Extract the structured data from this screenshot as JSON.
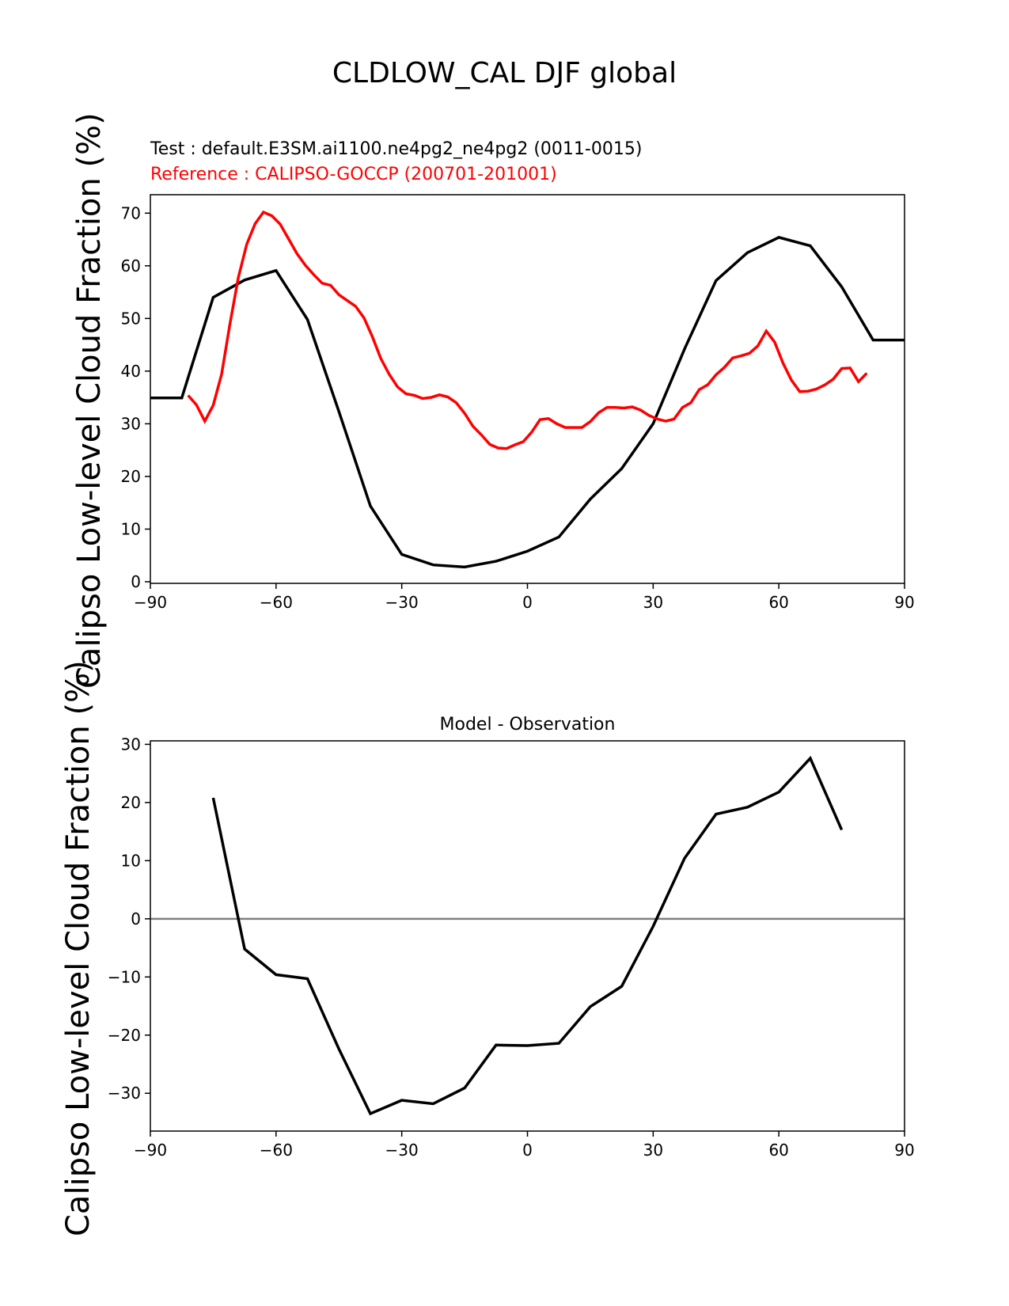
{
  "title": "CLDLOW_CAL DJF global",
  "test_label": "Test : default.E3SM.ai1100.ne4pg2_ne4pg2 (0011-0015)",
  "reference_label": "Reference : CALIPSO-GOCCP (200701-201001)",
  "colors": {
    "test": "#000000",
    "reference": "#ff0000",
    "diff": "#000000",
    "zero_line": "#808080"
  },
  "chart_data": [
    {
      "type": "line",
      "title": "",
      "ylabel": "Calipso Low-level Cloud Fraction (%)",
      "xlim": [
        -90,
        90
      ],
      "ylim": [
        -0.3,
        73.5
      ],
      "xticks": [
        -90,
        -60,
        -30,
        0,
        30,
        60,
        90
      ],
      "yticks": [
        0,
        10,
        20,
        30,
        40,
        50,
        60,
        70
      ],
      "series": [
        {
          "name": "Test",
          "color": "#000000",
          "x": [
            -90,
            -82.5,
            -75,
            -67.5,
            -60,
            -52.5,
            -45,
            -37.5,
            -30,
            -22.5,
            -15,
            -7.5,
            0,
            7.5,
            15,
            22.5,
            30,
            37.5,
            45,
            52.5,
            60,
            67.5,
            75,
            82.5,
            90
          ],
          "y": [
            34.9,
            34.9,
            54.0,
            57.3,
            59.1,
            49.8,
            32.3,
            14.4,
            5.2,
            3.2,
            2.8,
            3.9,
            5.8,
            8.5,
            15.7,
            21.5,
            30.0,
            44.2,
            57.2,
            62.5,
            65.4,
            63.8,
            56.0,
            45.9,
            45.9
          ]
        },
        {
          "name": "Reference",
          "color": "#ff0000",
          "x": [
            -81,
            -79,
            -77,
            -75,
            -73,
            -71,
            -69,
            -67,
            -65,
            -63,
            -61,
            -59,
            -57,
            -55,
            -53,
            -51,
            -49,
            -47,
            -45,
            -43,
            -41,
            -39,
            -37,
            -35,
            -33,
            -31,
            -29,
            -27,
            -25,
            -23,
            -21,
            -19,
            -17,
            -15,
            -13,
            -11,
            -9,
            -7,
            -5,
            -3,
            -1,
            1,
            3,
            5,
            7,
            9,
            11,
            13,
            15,
            17,
            19,
            21,
            23,
            25,
            27,
            29,
            31,
            33,
            35,
            37,
            39,
            41,
            43,
            45,
            47,
            49,
            51,
            53,
            55,
            57,
            59,
            61,
            63,
            65,
            67,
            69,
            71,
            73,
            75,
            77,
            79,
            81
          ],
          "y": [
            35.4,
            33.6,
            30.5,
            33.5,
            39.4,
            49.0,
            57.8,
            64.1,
            68.0,
            70.2,
            69.5,
            67.9,
            65.1,
            62.3,
            60.1,
            58.3,
            56.7,
            56.3,
            54.5,
            53.4,
            52.3,
            50.1,
            46.5,
            42.4,
            39.4,
            37.0,
            35.7,
            35.4,
            34.8,
            35.0,
            35.5,
            35.1,
            34.0,
            32.0,
            29.5,
            27.9,
            26.1,
            25.4,
            25.3,
            26.0,
            26.6,
            28.4,
            30.8,
            31.0,
            30.0,
            29.3,
            29.3,
            29.3,
            30.4,
            32.1,
            33.1,
            33.1,
            33.0,
            33.2,
            32.6,
            31.6,
            30.9,
            30.5,
            30.9,
            33.1,
            34.0,
            36.5,
            37.4,
            39.3,
            40.7,
            42.5,
            42.9,
            43.4,
            44.8,
            47.6,
            45.5,
            41.5,
            38.3,
            36.1,
            36.2,
            36.6,
            37.4,
            38.5,
            40.5,
            40.6,
            38.0,
            39.6
          ]
        }
      ]
    },
    {
      "type": "line",
      "title": "Model - Observation",
      "ylabel": "Calipso Low-level Cloud Fraction (%)",
      "xlim": [
        -90,
        90
      ],
      "ylim": [
        -36.5,
        30.6
      ],
      "xticks": [
        -90,
        -60,
        -30,
        0,
        30,
        60,
        90
      ],
      "yticks": [
        -30,
        -20,
        -10,
        0,
        10,
        20,
        30
      ],
      "zero_line": true,
      "series": [
        {
          "color": "#000000",
          "x": [
            -75,
            -67.5,
            -60,
            -52.5,
            -45,
            -37.5,
            -30,
            -22.5,
            -15,
            -7.5,
            0,
            7.5,
            15,
            22.5,
            30,
            37.5,
            45,
            52.5,
            60,
            67.5,
            75
          ],
          "y": [
            20.8,
            -5.2,
            -9.6,
            -10.3,
            -22.4,
            -33.5,
            -31.2,
            -31.8,
            -29.1,
            -21.7,
            -21.8,
            -21.4,
            -15.1,
            -11.6,
            -1.3,
            10.4,
            18.0,
            19.2,
            21.8,
            27.6,
            15.3
          ]
        }
      ]
    }
  ]
}
